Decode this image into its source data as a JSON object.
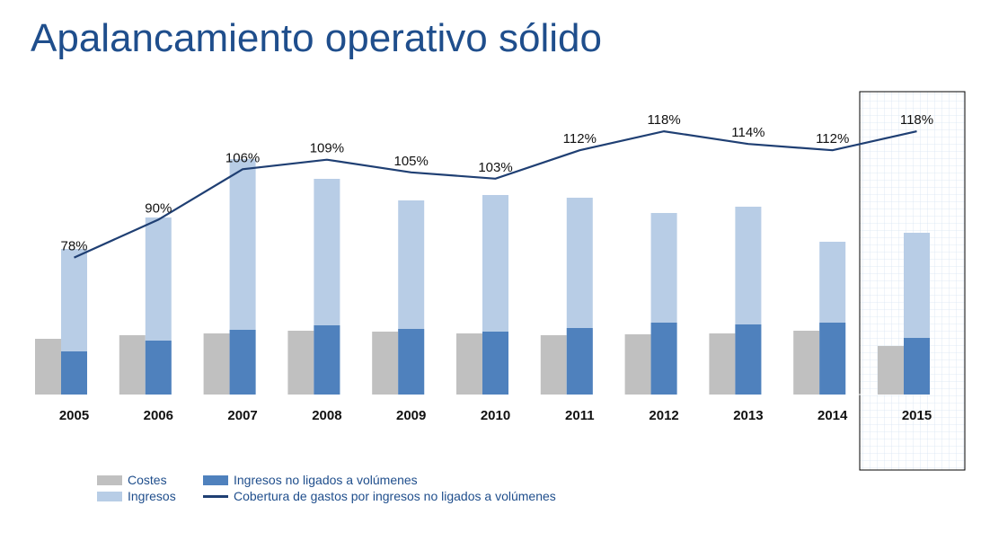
{
  "title": "Apalancamiento operativo sólido",
  "colors": {
    "title": "#1f4e8c",
    "costes": "#c0c0c0",
    "ingresos": "#b8cde6",
    "ingresos_no_ligados": "#4f81bd",
    "cobertura": "#1f3f73",
    "highlight_border": "#000000",
    "highlight_grid": "#d7e5f3"
  },
  "legend": {
    "costes": "Costes",
    "ingresos": "Ingresos",
    "ingresos_no_ligados": "Ingresos no ligados a volúmenes",
    "cobertura": "Cobertura de gastos por ingresos no ligados a volúmenes"
  },
  "chart_data": {
    "type": "bar",
    "title": "Apalancamiento operativo sólido",
    "categories": [
      "2005",
      "2006",
      "2007",
      "2008",
      "2009",
      "2010",
      "2011",
      "2012",
      "2013",
      "2014",
      "2015"
    ],
    "highlighted_category": "2015",
    "series": [
      {
        "name": "Costes",
        "kind": "bar",
        "values": [
          62,
          66,
          68,
          71,
          70,
          68,
          66,
          67,
          68,
          71,
          54
        ]
      },
      {
        "name": "Ingresos",
        "kind": "bar",
        "overlaps": "Ingresos no ligados a volúmenes",
        "values": [
          162,
          197,
          262,
          240,
          216,
          222,
          219,
          202,
          209,
          170,
          180
        ]
      },
      {
        "name": "Ingresos no ligados a volúmenes",
        "kind": "bar",
        "values": [
          48,
          60,
          72,
          77,
          73,
          70,
          74,
          80,
          78,
          80,
          63
        ]
      },
      {
        "name": "Cobertura de gastos por ingresos no ligados a volúmenes",
        "kind": "line",
        "unit": "%",
        "values": [
          78,
          90,
          106,
          109,
          105,
          103,
          112,
          118,
          114,
          112,
          118
        ]
      }
    ],
    "line_labels": [
      "78%",
      "90%",
      "106%",
      "109%",
      "105%",
      "103%",
      "112%",
      "118%",
      "114%",
      "112%",
      "118%"
    ],
    "bar_ylim": [
      0,
      280
    ],
    "line_ylim": [
      40,
      130
    ],
    "xlabel": "",
    "ylabel": "",
    "legend_position": "bottom-left",
    "grid": false
  }
}
